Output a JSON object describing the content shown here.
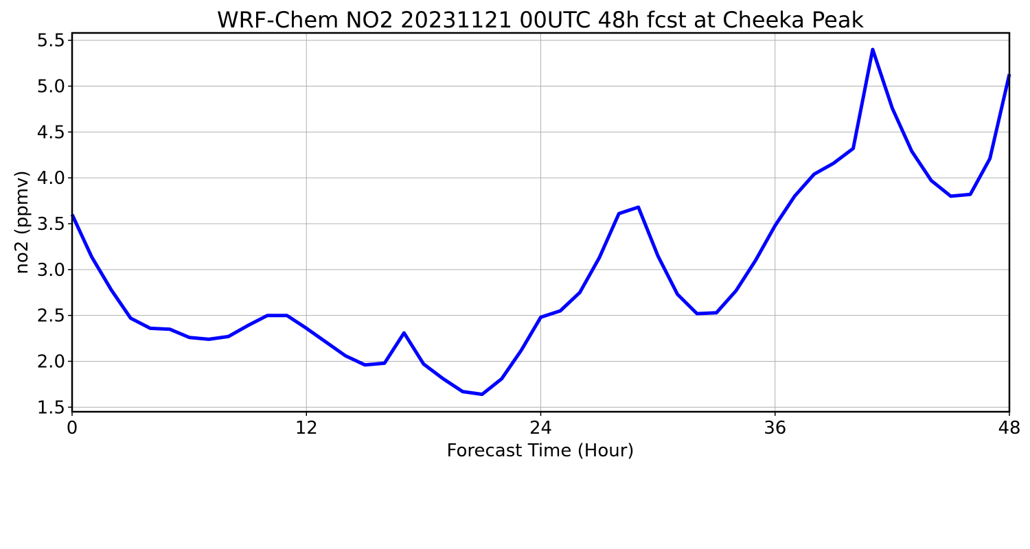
{
  "chart_data": {
    "type": "line",
    "title": "WRF-Chem NO2  20231121 00UTC 48h fcst at Cheeka Peak",
    "xlabel": "Forecast Time (Hour)",
    "ylabel": "no2  (ppmv)",
    "xlim": [
      0,
      48
    ],
    "ylim": [
      1.45,
      5.58
    ],
    "xticks": [
      0,
      12,
      24,
      36,
      48
    ],
    "xtick_labels": [
      "0",
      "12",
      "24",
      "36",
      "48"
    ],
    "yticks": [
      1.5,
      2.0,
      2.5,
      3.0,
      3.5,
      4.0,
      4.5,
      5.0,
      5.5
    ],
    "ytick_labels": [
      "1.5",
      "2.0",
      "2.5",
      "3.0",
      "3.5",
      "4.0",
      "4.5",
      "5.0",
      "5.5"
    ],
    "grid": true,
    "legend": false,
    "series": [
      {
        "color": "#0000ff",
        "x": [
          0,
          1,
          2,
          3,
          4,
          5,
          6,
          7,
          8,
          9,
          10,
          11,
          12,
          13,
          14,
          15,
          16,
          17,
          18,
          19,
          20,
          21,
          22,
          23,
          24,
          25,
          26,
          27,
          28,
          29,
          30,
          31,
          32,
          33,
          34,
          35,
          36,
          37,
          38,
          39,
          40,
          41,
          42,
          43,
          44,
          45,
          46,
          47,
          48
        ],
        "y": [
          3.6,
          3.14,
          2.78,
          2.47,
          2.36,
          2.35,
          2.26,
          2.24,
          2.27,
          2.39,
          2.5,
          2.5,
          2.36,
          2.21,
          2.06,
          1.96,
          1.98,
          2.31,
          1.97,
          1.81,
          1.67,
          1.64,
          1.81,
          2.12,
          2.48,
          2.55,
          2.75,
          3.13,
          3.61,
          3.68,
          3.15,
          2.73,
          2.52,
          2.53,
          2.77,
          3.1,
          3.48,
          3.8,
          4.04,
          4.16,
          4.32,
          5.4,
          4.76,
          4.29,
          3.97,
          3.8,
          3.82,
          4.21,
          5.13
        ]
      }
    ]
  }
}
